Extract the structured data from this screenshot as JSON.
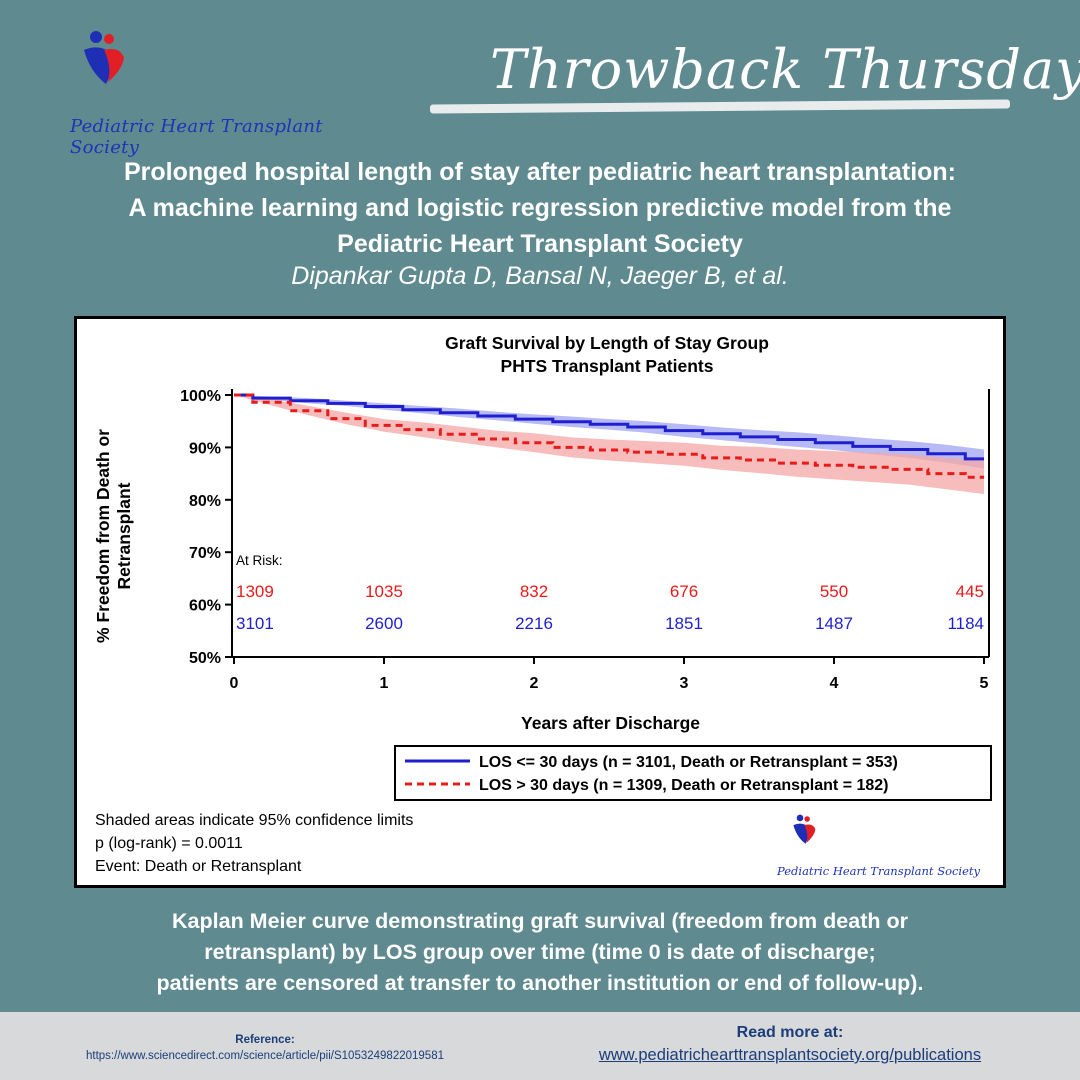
{
  "header": {
    "banner_title": "Throwback Thursday",
    "society_name": "Pediatric Heart Transplant Society"
  },
  "paper": {
    "title_lines": [
      "Prolonged hospital length of stay after pediatric heart transplantation:",
      "A machine learning and logistic regression predictive model from the",
      "Pediatric Heart Transplant Society"
    ],
    "authors": "Dipankar Gupta D, Bansal N, Jaeger B, et al."
  },
  "chart_data": {
    "type": "line",
    "title": "Graft Survival by Length of Stay Group",
    "subtitle": "PHTS Transplant Patients",
    "xlabel": "Years after Discharge",
    "ylabel": "% Freedom from Death or Retransplant",
    "xlim": [
      0,
      5
    ],
    "ylim": [
      50,
      100
    ],
    "xticks": [
      "0",
      "1",
      "2",
      "3",
      "4",
      "5"
    ],
    "yticks": [
      "50%",
      "60%",
      "70%",
      "80%",
      "90%",
      "100%"
    ],
    "grid": false,
    "series": [
      {
        "name": "LOS <= 30 days (n = 3101, Death or Retransplant = 353)",
        "color": "#1f1fd0",
        "band_color": "#9fa3f0",
        "style": "solid",
        "x": [
          0,
          0.25,
          0.5,
          0.75,
          1,
          1.25,
          1.5,
          1.75,
          2,
          2.25,
          2.5,
          2.75,
          3,
          3.25,
          3.5,
          3.75,
          4,
          4.25,
          4.5,
          4.75,
          5
        ],
        "y": [
          100,
          99.4,
          98.9,
          98.4,
          97.8,
          97.2,
          96.6,
          96.0,
          95.4,
          94.9,
          94.4,
          93.9,
          93.2,
          92.6,
          92.0,
          91.5,
          90.9,
          90.2,
          89.6,
          88.8,
          87.8
        ],
        "lower": [
          100,
          99.1,
          98.4,
          97.9,
          97.2,
          96.5,
          95.8,
          95.2,
          94.5,
          93.9,
          93.4,
          92.8,
          92.0,
          91.4,
          90.7,
          90.1,
          89.5,
          88.7,
          88.0,
          87.1,
          86.0
        ],
        "upper": [
          100,
          99.7,
          99.4,
          98.9,
          98.4,
          97.9,
          97.4,
          96.8,
          96.3,
          95.9,
          95.4,
          95.0,
          94.4,
          93.8,
          93.3,
          92.9,
          92.3,
          91.7,
          91.2,
          90.5,
          89.6
        ]
      },
      {
        "name": "LOS > 30 days (n = 1309, Death or Retransplant = 182)",
        "color": "#e81b1b",
        "band_color": "#f4a7a7",
        "style": "dashed",
        "x": [
          0,
          0.25,
          0.5,
          0.75,
          1,
          1.25,
          1.5,
          1.75,
          2,
          2.25,
          2.5,
          2.75,
          3,
          3.25,
          3.5,
          3.75,
          4,
          4.25,
          4.5,
          4.75,
          5
        ],
        "y": [
          100,
          98.6,
          97.0,
          95.5,
          94.2,
          93.4,
          92.5,
          91.6,
          90.9,
          90.0,
          89.5,
          89.1,
          88.7,
          88.0,
          87.6,
          87.0,
          86.6,
          86.2,
          85.8,
          85.0,
          84.3
        ],
        "lower": [
          100,
          98.0,
          96.1,
          94.4,
          93.0,
          92.0,
          91.0,
          90.0,
          89.1,
          88.1,
          87.5,
          87.0,
          86.5,
          85.7,
          85.1,
          84.4,
          83.9,
          83.4,
          82.9,
          82.0,
          81.1
        ],
        "upper": [
          100,
          99.2,
          97.9,
          96.6,
          95.4,
          94.8,
          94.0,
          93.2,
          92.7,
          91.9,
          91.5,
          91.2,
          90.9,
          90.3,
          90.1,
          89.6,
          89.3,
          89.0,
          88.7,
          88.0,
          87.5
        ]
      }
    ],
    "at_risk": {
      "label": "At Risk:",
      "times": [
        0,
        1,
        2,
        3,
        4,
        5
      ],
      "rows": [
        {
          "series": "LOS > 30 days",
          "color": "#e81b1b",
          "values": [
            "1309",
            "1035",
            "832",
            "676",
            "550",
            "445"
          ]
        },
        {
          "series": "LOS <= 30 days",
          "color": "#1f1fd0",
          "values": [
            "3101",
            "2600",
            "2216",
            "1851",
            "1487",
            "1184"
          ]
        }
      ]
    },
    "legend_position": "bottom-right",
    "annotations": [
      "Shaded areas indicate 95% confidence limits",
      "p (log-rank) = 0.0011",
      "Event: Death or Retransplant"
    ]
  },
  "caption_lines": [
    "Kaplan Meier curve demonstrating graft survival (freedom from death or",
    "retransplant) by LOS group over time (time 0 is date of discharge;",
    "patients are censored at transfer to another institution or end of follow-up)."
  ],
  "footer": {
    "reference_label": "Reference:",
    "reference_url": "https://www.sciencedirect.com/science/article/pii/S1053249822019581",
    "read_more_label": "Read more at:",
    "read_more_url": "www.pediatrichearttransplantsociety.org/publications"
  }
}
